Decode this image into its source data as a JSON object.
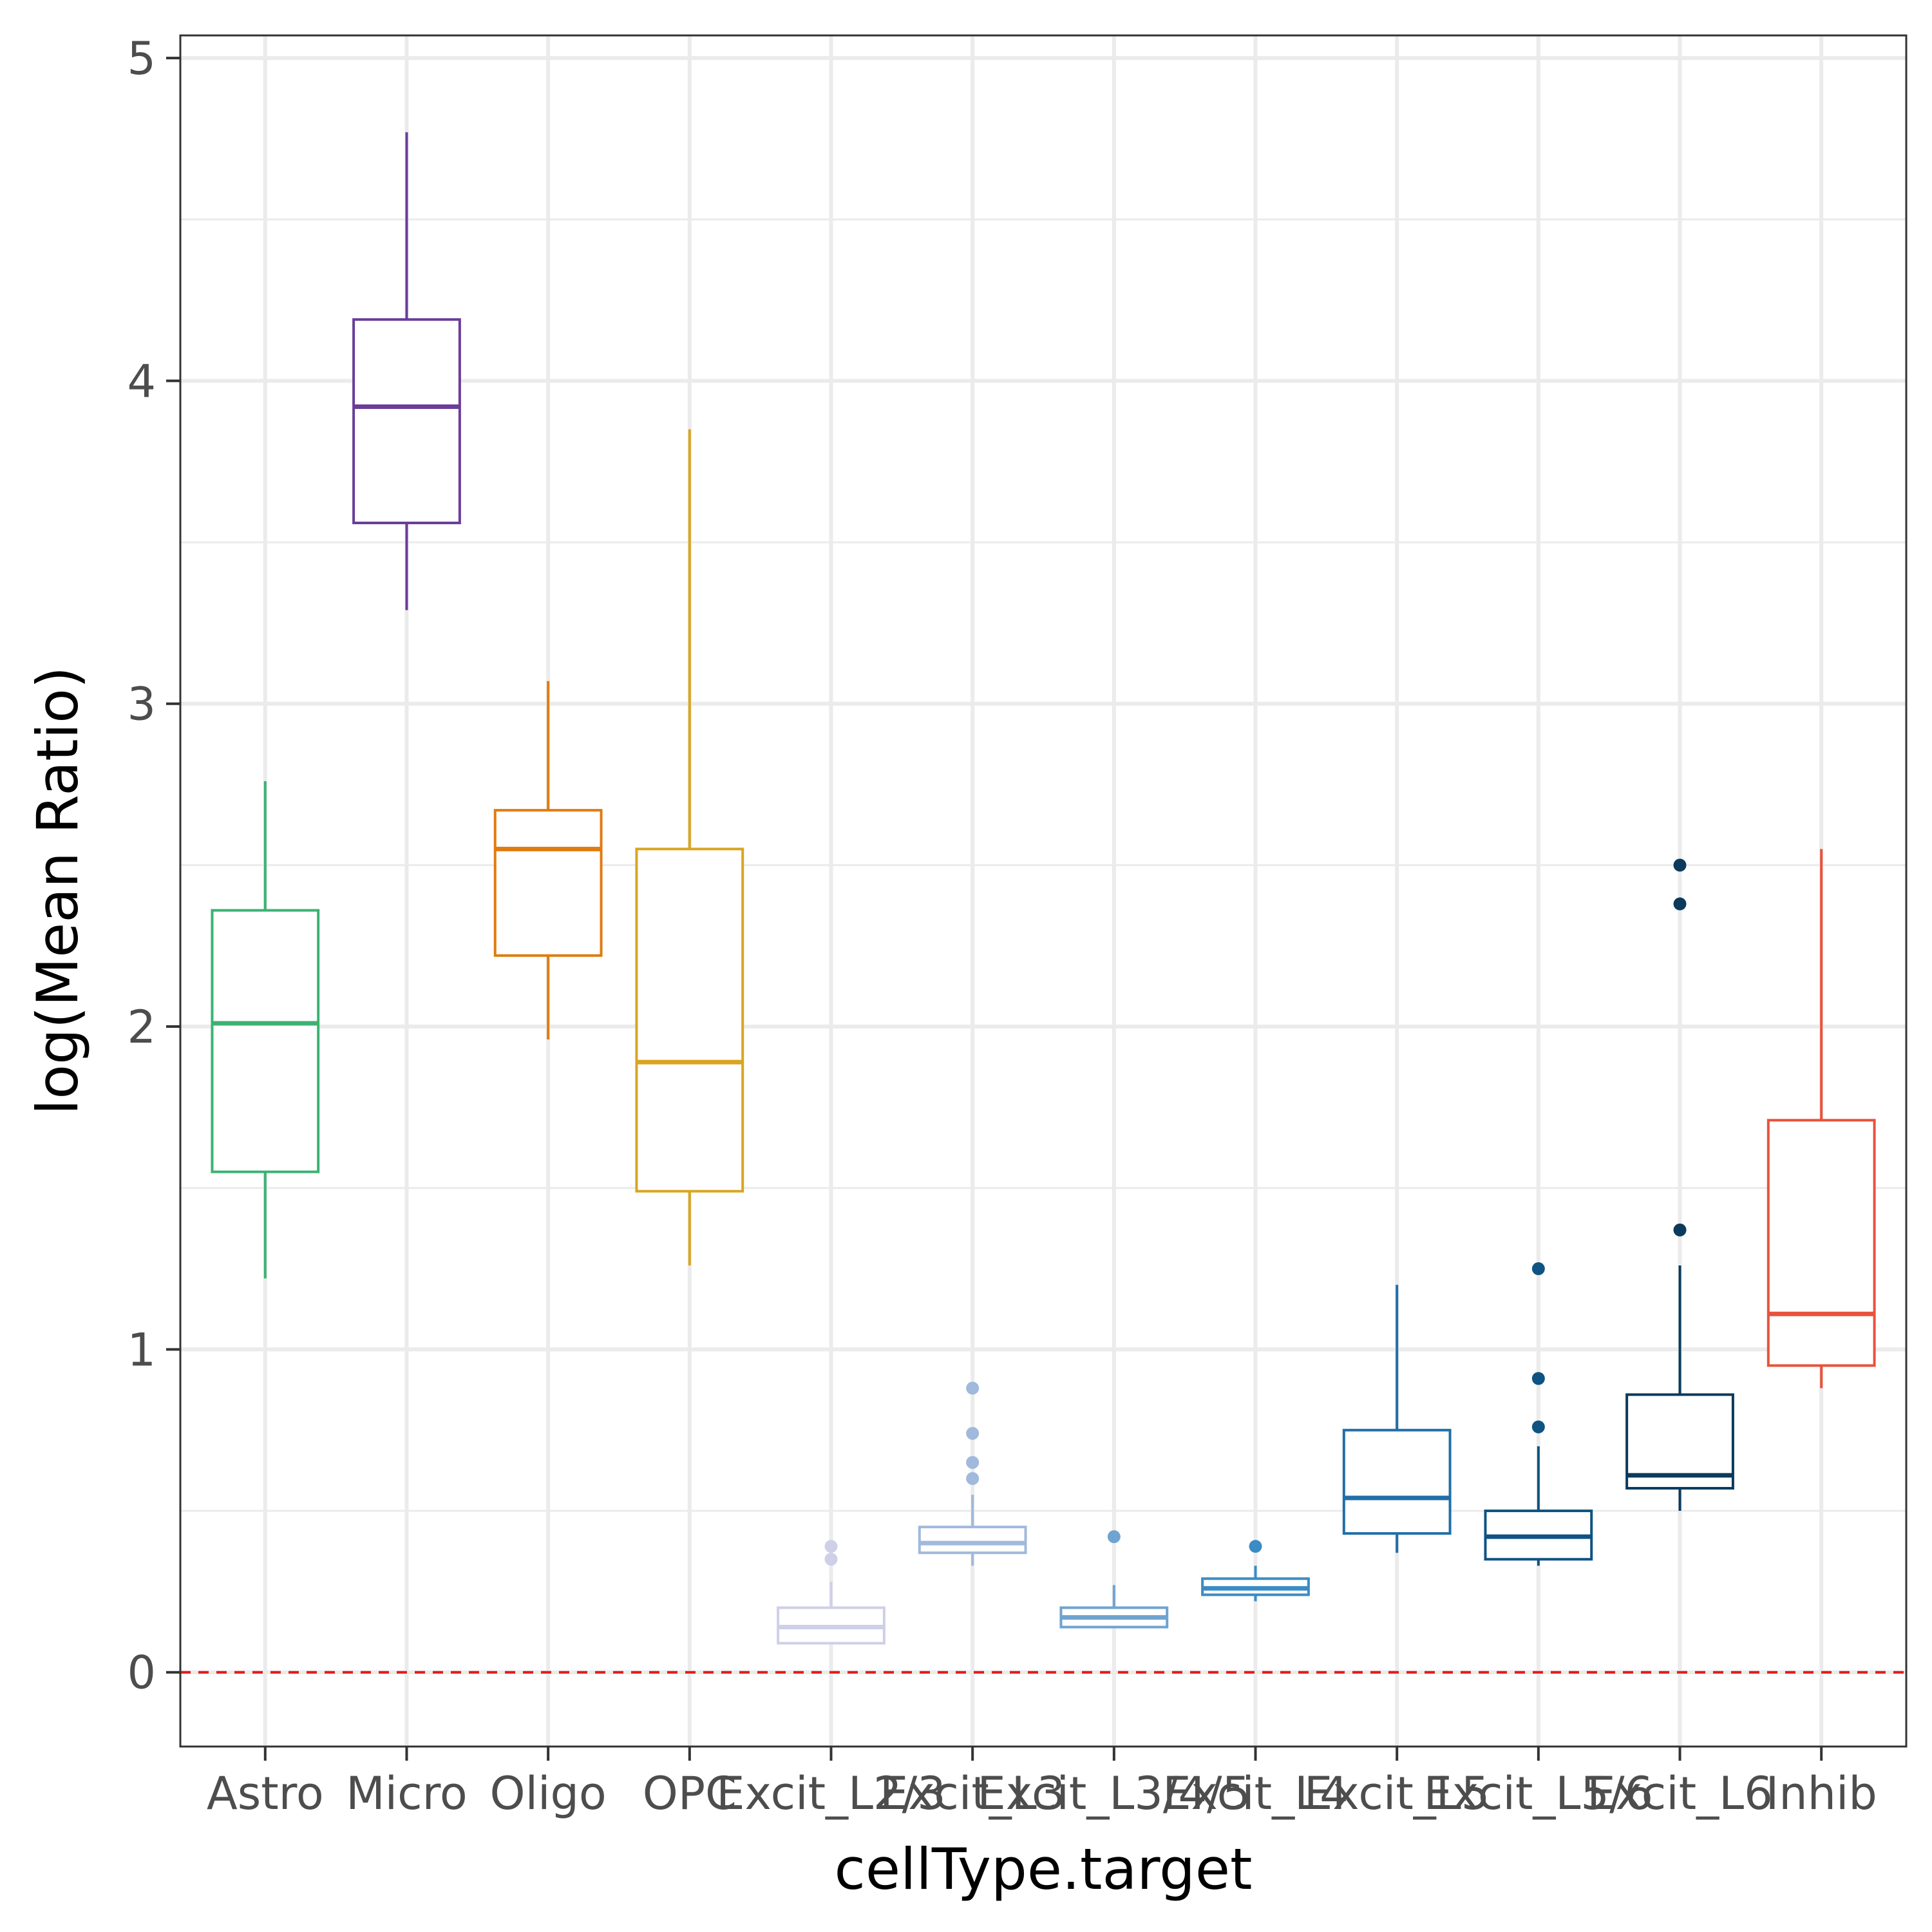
{
  "chart_data": {
    "type": "box",
    "title": "",
    "xlabel": "cellType.target",
    "ylabel": "log(Mean Ratio)",
    "ylim": [
      -0.23,
      5.07
    ],
    "yticks": [
      "0",
      "1",
      "2",
      "3",
      "4",
      "5"
    ],
    "ytick_values": [
      0,
      1,
      2,
      3,
      4,
      5
    ],
    "grid": true,
    "reference_line": {
      "y": 0,
      "style": "dashed",
      "color": "#e41a1c"
    },
    "categories": [
      "Astro",
      "Micro",
      "Oligo",
      "OPC",
      "Excit_L2/3",
      "Excit_L3",
      "Excit_L3/4/5",
      "Excit_L4",
      "Excit_L5",
      "Excit_L5/6",
      "Excit_L6",
      "Inhib"
    ],
    "boxes": [
      {
        "category": "Astro",
        "color": "#3bb273",
        "whisker_low": 1.22,
        "q1": 1.55,
        "median": 2.01,
        "q3": 2.36,
        "whisker_high": 2.76,
        "outliers": []
      },
      {
        "category": "Micro",
        "color": "#6a3d9a",
        "whisker_low": 3.29,
        "q1": 3.56,
        "median": 3.92,
        "q3": 4.19,
        "whisker_high": 4.77,
        "outliers": []
      },
      {
        "category": "Oligo",
        "color": "#e07b10",
        "whisker_low": 1.96,
        "q1": 2.22,
        "median": 2.55,
        "q3": 2.67,
        "whisker_high": 3.07,
        "outliers": []
      },
      {
        "category": "OPC",
        "color": "#d9a521",
        "whisker_low": 1.26,
        "q1": 1.49,
        "median": 1.89,
        "q3": 2.55,
        "whisker_high": 3.85,
        "outliers": []
      },
      {
        "category": "Excit_L2/3",
        "color": "#cfcfe8",
        "whisker_low": 0.09,
        "q1": 0.09,
        "median": 0.14,
        "q3": 0.2,
        "whisker_high": 0.28,
        "outliers": [
          0.35,
          0.39
        ]
      },
      {
        "category": "Excit_L3",
        "color": "#a0b9dc",
        "whisker_low": 0.33,
        "q1": 0.37,
        "median": 0.4,
        "q3": 0.45,
        "whisker_high": 0.55,
        "outliers": [
          0.6,
          0.65,
          0.74,
          0.88
        ]
      },
      {
        "category": "Excit_L3/4/5",
        "color": "#6fa3d1",
        "whisker_low": 0.14,
        "q1": 0.14,
        "median": 0.17,
        "q3": 0.2,
        "whisker_high": 0.27,
        "outliers": [
          0.42
        ]
      },
      {
        "category": "Excit_L4",
        "color": "#3a8cc5",
        "whisker_low": 0.22,
        "q1": 0.24,
        "median": 0.26,
        "q3": 0.29,
        "whisker_high": 0.33,
        "outliers": [
          0.39
        ]
      },
      {
        "category": "Excit_L5",
        "color": "#1f6fa8",
        "whisker_low": 0.37,
        "q1": 0.43,
        "median": 0.54,
        "q3": 0.75,
        "whisker_high": 1.2,
        "outliers": []
      },
      {
        "category": "Excit_L5/6",
        "color": "#0f5383",
        "whisker_low": 0.33,
        "q1": 0.35,
        "median": 0.42,
        "q3": 0.5,
        "whisker_high": 0.7,
        "outliers": [
          0.76,
          0.91,
          1.25
        ]
      },
      {
        "category": "Excit_L6",
        "color": "#0b3a5c",
        "whisker_low": 0.5,
        "q1": 0.57,
        "median": 0.61,
        "q3": 0.86,
        "whisker_high": 1.26,
        "outliers": [
          1.37,
          2.38,
          2.5
        ]
      },
      {
        "category": "Inhib",
        "color": "#e8523b",
        "whisker_low": 0.88,
        "q1": 0.95,
        "median": 1.11,
        "q3": 1.71,
        "whisker_high": 2.55,
        "outliers": []
      }
    ]
  }
}
